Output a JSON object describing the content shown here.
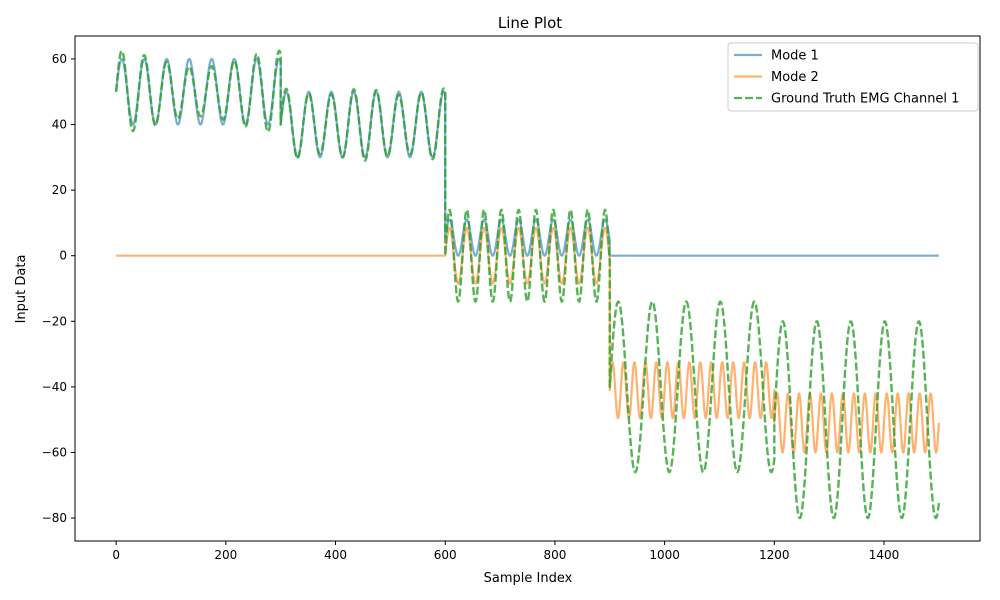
{
  "chart_data": {
    "type": "line",
    "title": "Line Plot",
    "xlabel": "Sample Index",
    "ylabel": "Input Data",
    "xlim": [
      -75,
      1575
    ],
    "ylim": [
      -87,
      67
    ],
    "xticks": [
      0,
      200,
      400,
      600,
      800,
      1000,
      1200,
      1400
    ],
    "yticks": [
      -80,
      -60,
      -40,
      -20,
      0,
      20,
      40,
      60
    ],
    "grid": false,
    "legend_position": "top-right",
    "series": [
      {
        "name": "Mode 1",
        "color": "#1f77b4",
        "alpha": 0.6,
        "style": "solid",
        "segments": [
          {
            "x_start": 0,
            "x_end": 300,
            "offset": 50,
            "amplitude": 10,
            "period": 41
          },
          {
            "x_start": 300,
            "x_end": 600,
            "offset": 40,
            "amplitude": 10,
            "period": 41
          },
          {
            "x_start": 600,
            "x_end": 900,
            "offset": 5.5,
            "amplitude": 5.5,
            "period": 31.5
          },
          {
            "x_start": 900,
            "x_end": 1500,
            "offset": 0,
            "amplitude": 0,
            "period": 1
          }
        ]
      },
      {
        "name": "Mode 2",
        "color": "#ff7f0e",
        "alpha": 0.6,
        "style": "solid",
        "segments": [
          {
            "x_start": 0,
            "x_end": 600,
            "offset": 0,
            "amplitude": 0,
            "period": 1
          },
          {
            "x_start": 600,
            "x_end": 900,
            "offset": 0,
            "amplitude": 8.5,
            "period": 31.5
          },
          {
            "x_start": 900,
            "x_end": 1200,
            "offset": -41,
            "amplitude": 8.5,
            "period": 20
          },
          {
            "x_start": 1200,
            "x_end": 1500,
            "offset": -51,
            "amplitude": 9,
            "period": 20
          }
        ]
      },
      {
        "name": "Ground Truth EMG Channel 1",
        "color": "#2ca02c",
        "alpha": 0.8,
        "style": "dashed",
        "segments": [
          {
            "x_start": 0,
            "x_end": 300,
            "sum_of": [
              0,
              1
            ],
            "seg": 0
          },
          {
            "x_start": 300,
            "x_end": 600,
            "sum_of": [
              0,
              1
            ],
            "seg": 1
          },
          {
            "x_start": 600,
            "x_end": 900,
            "offset": 0,
            "amplitude": 14,
            "period": 31.5
          },
          {
            "x_start": 900,
            "x_end": 1200,
            "offset": -40,
            "amplitude": 26,
            "period": 62
          },
          {
            "x_start": 1200,
            "x_end": 1500,
            "offset": -50,
            "amplitude": 30,
            "period": 62
          }
        ]
      }
    ],
    "emg_beat": [
      {
        "x_start": 0,
        "x_end": 300,
        "offset": 50,
        "amplitude": 10,
        "period": 41,
        "beat_amplitude": 0.25,
        "beat_period": 300
      },
      {
        "x_start": 300,
        "x_end": 600,
        "offset": 40,
        "amplitude": 10,
        "period": 41,
        "beat_amplitude": 0.1,
        "beat_period": 150
      }
    ]
  }
}
